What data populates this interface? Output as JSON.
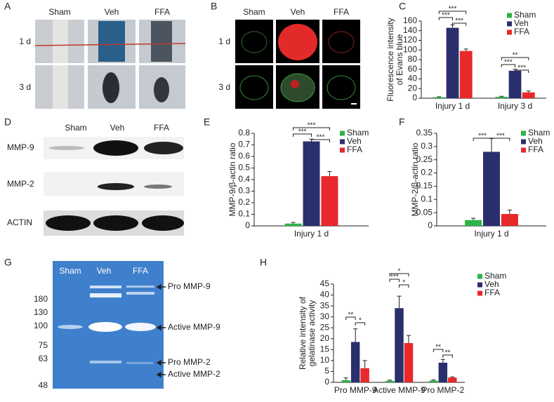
{
  "figure": {
    "A": {
      "panel_label": "A",
      "columns": [
        "Sham",
        "Veh",
        "FFA"
      ],
      "rows": [
        "1 d",
        "3 d"
      ]
    },
    "B": {
      "panel_label": "B",
      "columns": [
        "Sham",
        "Veh",
        "FFA"
      ],
      "rows": [
        "1 d",
        "3 d"
      ]
    },
    "D": {
      "panel_label": "D",
      "columns": [
        "Sham",
        "Veh",
        "FFA"
      ],
      "rows": [
        "MMP-9",
        "MMP-2",
        "ACTIN"
      ]
    },
    "G": {
      "panel_label": "G",
      "columns": [
        "Sham",
        "Veh",
        "FFA"
      ],
      "markers": [
        180,
        130,
        100,
        75,
        63,
        48
      ],
      "bands": [
        "Pro MMP-9",
        "Active MMP-9",
        "Pro MMP-2",
        "Active MMP-2"
      ]
    }
  },
  "chart_data": [
    {
      "type": "bar",
      "panel_label": "C",
      "y_label": [
        "Fluorescence intensity",
        "of Evans blue"
      ],
      "categories": [
        "Injury 1 d",
        "Injury 3 d"
      ],
      "series": [
        {
          "name": "Sham",
          "color": "#2db34a",
          "values": [
            2,
            3
          ],
          "errors": [
            1,
            1
          ]
        },
        {
          "name": "Veh",
          "color": "#2a2f6e",
          "values": [
            146,
            57
          ],
          "errors": [
            6,
            3
          ]
        },
        {
          "name": "FFA",
          "color": "#e8282a",
          "values": [
            98,
            12
          ],
          "errors": [
            4,
            3
          ]
        }
      ],
      "ylim": [
        0,
        160
      ],
      "yticks": [
        0,
        20,
        40,
        60,
        80,
        100,
        120,
        140,
        160
      ],
      "legend": "upper right",
      "annotations": [
        "***",
        "***",
        "***",
        "**",
        "***",
        "***"
      ]
    },
    {
      "type": "bar",
      "panel_label": "E",
      "y_label": [
        "MMP-9/β-actin ratio"
      ],
      "categories": [
        "Injury 1 d"
      ],
      "series": [
        {
          "name": "Sham",
          "color": "#2db34a",
          "values": [
            0.02
          ],
          "errors": [
            0.01
          ]
        },
        {
          "name": "Veh",
          "color": "#2a2f6e",
          "values": [
            0.73
          ],
          "errors": [
            0.02
          ]
        },
        {
          "name": "FFA",
          "color": "#e8282a",
          "values": [
            0.43
          ],
          "errors": [
            0.04
          ]
        }
      ],
      "ylim": [
        0,
        0.8
      ],
      "yticks": [
        0,
        0.1,
        0.2,
        0.3,
        0.4,
        0.5,
        0.6,
        0.7,
        0.8
      ],
      "legend": "upper right",
      "annotations": [
        "***",
        "***",
        "***"
      ]
    },
    {
      "type": "bar",
      "panel_label": "F",
      "y_label": [
        "MMP-2/β-actin ratio"
      ],
      "categories": [
        "Injury 1 d"
      ],
      "series": [
        {
          "name": "Sham",
          "color": "#2db34a",
          "values": [
            0.022
          ],
          "errors": [
            0.007
          ]
        },
        {
          "name": "Veh",
          "color": "#2a2f6e",
          "values": [
            0.28
          ],
          "errors": [
            0.05
          ]
        },
        {
          "name": "FFA",
          "color": "#e8282a",
          "values": [
            0.045
          ],
          "errors": [
            0.015
          ]
        }
      ],
      "ylim": [
        0,
        0.35
      ],
      "yticks": [
        0,
        0.05,
        0.1,
        0.15,
        0.2,
        0.25,
        0.3,
        0.35
      ],
      "legend": "upper right",
      "annotations": [
        "***",
        "***"
      ]
    },
    {
      "type": "bar",
      "panel_label": "H",
      "y_label": [
        "Relative intensity of",
        "gelatinase activity"
      ],
      "categories": [
        "Pro MMP-9",
        "Active MMP-9",
        "Pro MMP-2"
      ],
      "series": [
        {
          "name": "Sham",
          "color": "#2db34a",
          "values": [
            1,
            0.7,
            0.8
          ],
          "errors": [
            1,
            0.3,
            0.3
          ]
        },
        {
          "name": "Veh",
          "color": "#2a2f6e",
          "values": [
            18.5,
            34,
            9
          ],
          "errors": [
            6,
            5.5,
            1.5
          ]
        },
        {
          "name": "FFA",
          "color": "#e8282a",
          "values": [
            6.5,
            18,
            2.2
          ],
          "errors": [
            3.5,
            3.5,
            0.3
          ]
        }
      ],
      "ylim": [
        0,
        45
      ],
      "yticks": [
        0,
        5,
        10,
        15,
        20,
        25,
        30,
        35,
        40,
        45
      ],
      "legend": "upper right",
      "annotations": [
        "**",
        "*",
        "*",
        "***",
        "*",
        "**",
        "**"
      ]
    }
  ]
}
